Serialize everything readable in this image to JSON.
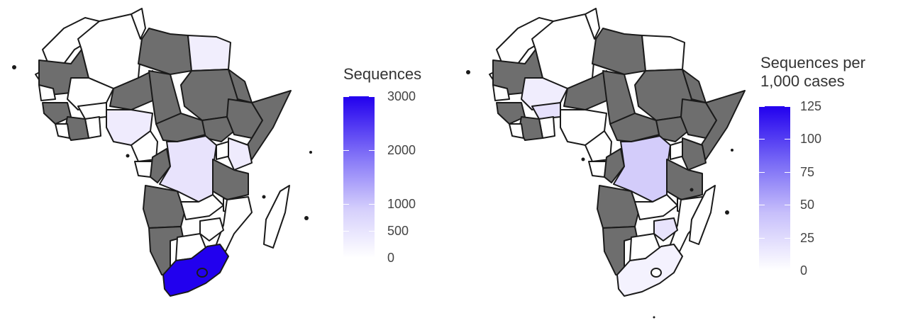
{
  "maps": [
    {
      "id": "left",
      "legend": {
        "title": "Sequences",
        "ticks": [
          "3000",
          "2000",
          "1000",
          "500",
          "0"
        ],
        "tick_values": [
          3000,
          2000,
          1000,
          500,
          0
        ],
        "max": 3000,
        "color_low": "#ffffff",
        "color_high": "#2200ee"
      },
      "countries": [
        {
          "name": "south-africa",
          "level": 1.0
        },
        {
          "name": "dr-congo",
          "level": 0.12
        },
        {
          "name": "nigeria",
          "level": 0.1
        },
        {
          "name": "egypt",
          "level": 0.1
        },
        {
          "name": "kenya",
          "level": 0.1
        },
        {
          "name": "zimbabwe",
          "level": 0.08
        },
        {
          "name": "uganda",
          "level": 0.06
        }
      ]
    },
    {
      "id": "right",
      "legend": {
        "title": "Sequences per\n1,000 cases",
        "ticks": [
          "125",
          "100",
          "75",
          "50",
          "25",
          "0"
        ],
        "tick_values": [
          125,
          100,
          75,
          50,
          25,
          0
        ],
        "max": 125,
        "color_low": "#ffffff",
        "color_high": "#2200ee"
      },
      "countries": [
        {
          "name": "dr-congo",
          "level": 0.25
        },
        {
          "name": "mali",
          "level": 0.12
        },
        {
          "name": "ghana",
          "level": 0.1
        },
        {
          "name": "zimbabwe",
          "level": 0.1
        },
        {
          "name": "south-africa",
          "level": 0.05
        }
      ]
    }
  ],
  "colors": {
    "no_data": "#6e6e6e",
    "zero": "#ffffff",
    "border": "#1a1a1a",
    "high": "#2200ee"
  }
}
